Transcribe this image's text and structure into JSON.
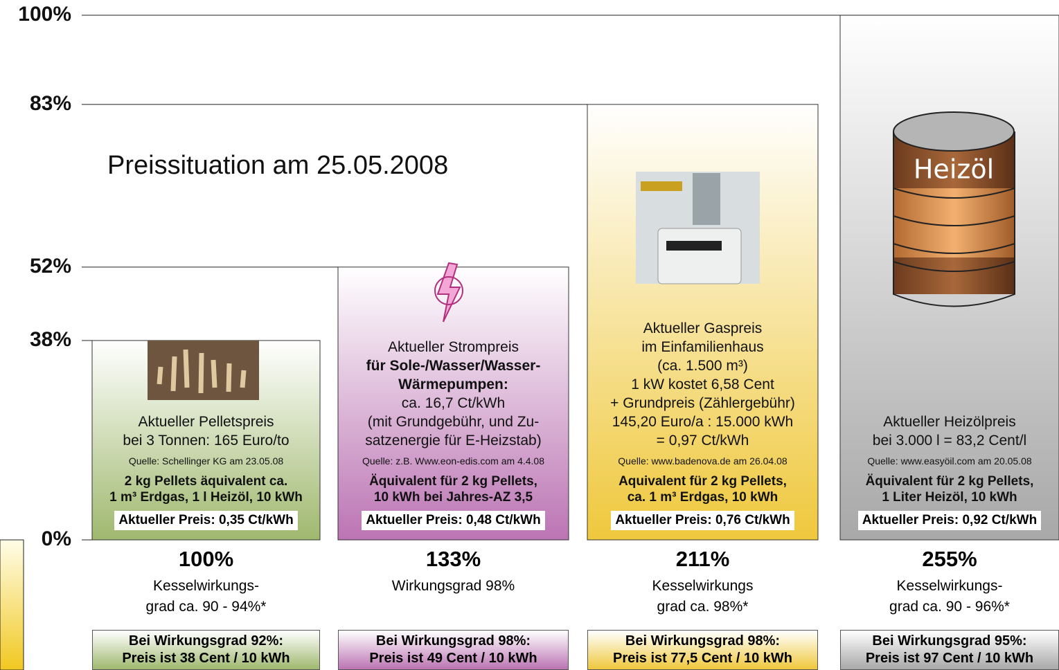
{
  "chart_data": {
    "type": "bar",
    "title": "Preissituation am  25.05.2008",
    "ylim": [
      0,
      100
    ],
    "yticks": [
      {
        "value": 0,
        "label": "0%"
      },
      {
        "value": 38,
        "label": "38%"
      },
      {
        "value": 52,
        "label": "52%"
      },
      {
        "value": 83,
        "label": "83%"
      },
      {
        "value": 100,
        "label": "100%"
      }
    ],
    "values": [
      38,
      52,
      83,
      100
    ],
    "bars": [
      {
        "color": "#9fb86e",
        "head": [
          "Aktueller Pelletspreis",
          "bei 3 Tonnen: 165 Euro/to"
        ],
        "source": "Quelle: Schellinger KG am 23.05.08",
        "equivalent": [
          "2 kg Pellets äquivalent ca.",
          "1 m³ Erdgas, 1 l Heizöl, 10 kWh"
        ],
        "price": "Aktueller Preis: 0,35 Ct/kWh",
        "ratio": "100%",
        "efficiency": [
          "Kesselwirkungs-",
          "grad ca. 90 - 94%*"
        ],
        "box": [
          "Bei Wirkungsgrad 92%:",
          "Preis ist 38 Cent / 10 kWh"
        ]
      },
      {
        "color": "#bb74b3",
        "head": [
          "Aktueller Strompreis"
        ],
        "bold": [
          "für Sole-/Wasser/Wasser-",
          "Wärmepumpen:"
        ],
        "detail": [
          "ca. 16,7 Ct/kWh",
          "(mit Grundgebühr, und Zu-",
          "satzenergie für E-Heizstab)"
        ],
        "source": "Quelle: z.B. Www.eon-edis.com am 4.4.08",
        "equivalent": [
          "Äquivalent für 2 kg Pellets,",
          "10 kWh bei Jahres-AZ 3,5"
        ],
        "price": "Aktueller Preis: 0,48 Ct/kWh",
        "ratio": "133%",
        "efficiency": [
          "Wirkungsgrad 98%"
        ],
        "box": [
          "Bei Wirkungsgrad 98%:",
          "Preis ist 49 Cent / 10 kWh"
        ]
      },
      {
        "color": "#efc83c",
        "head": [
          "Aktueller Gaspreis",
          "im Einfamilienhaus",
          "(ca. 1.500 m³)",
          "1 kW kostet 6,58 Cent",
          "+ Grundpreis (Zählergebühr)",
          "145,20 Euro/a : 15.000 kWh",
          "= 0,97 Ct/kWh"
        ],
        "source": "Quelle: www.badenova.de am 26.04.08",
        "equivalent": [
          "Aquivalent für 2 kg Pellets,",
          "ca. 1 m³ Erdgas, 10 kWh"
        ],
        "price": "Aktueller Preis: 0,76 Ct/kWh",
        "ratio": "211%",
        "efficiency": [
          "Kesselwirkungs",
          "grad ca. 98%*"
        ],
        "box": [
          "Bei Wirkungsgrad 98%:",
          "Preis ist 77,5 Cent / 10 kWh"
        ]
      },
      {
        "color": "#a8a8a8",
        "label": "Heizöl",
        "head": [
          "Aktueller Heizölpreis",
          "bei 3.000 l = 83,2 Cent/l"
        ],
        "source": "Quelle: www.easyöil.com am 20.05.08",
        "equivalent": [
          "Äquivalent für 2 kg Pellets,",
          "1 Liter Heizöl, 10 kWh"
        ],
        "price": "Aktueller Preis: 0,92 Ct/kWh",
        "ratio": "255%",
        "efficiency": [
          "Kesselwirkungs-",
          "grad ca. 90 - 96%*"
        ],
        "box": [
          "Bei Wirkungsgrad 95%:",
          "Preis ist 97 Cent / 10 kWh"
        ]
      }
    ]
  }
}
